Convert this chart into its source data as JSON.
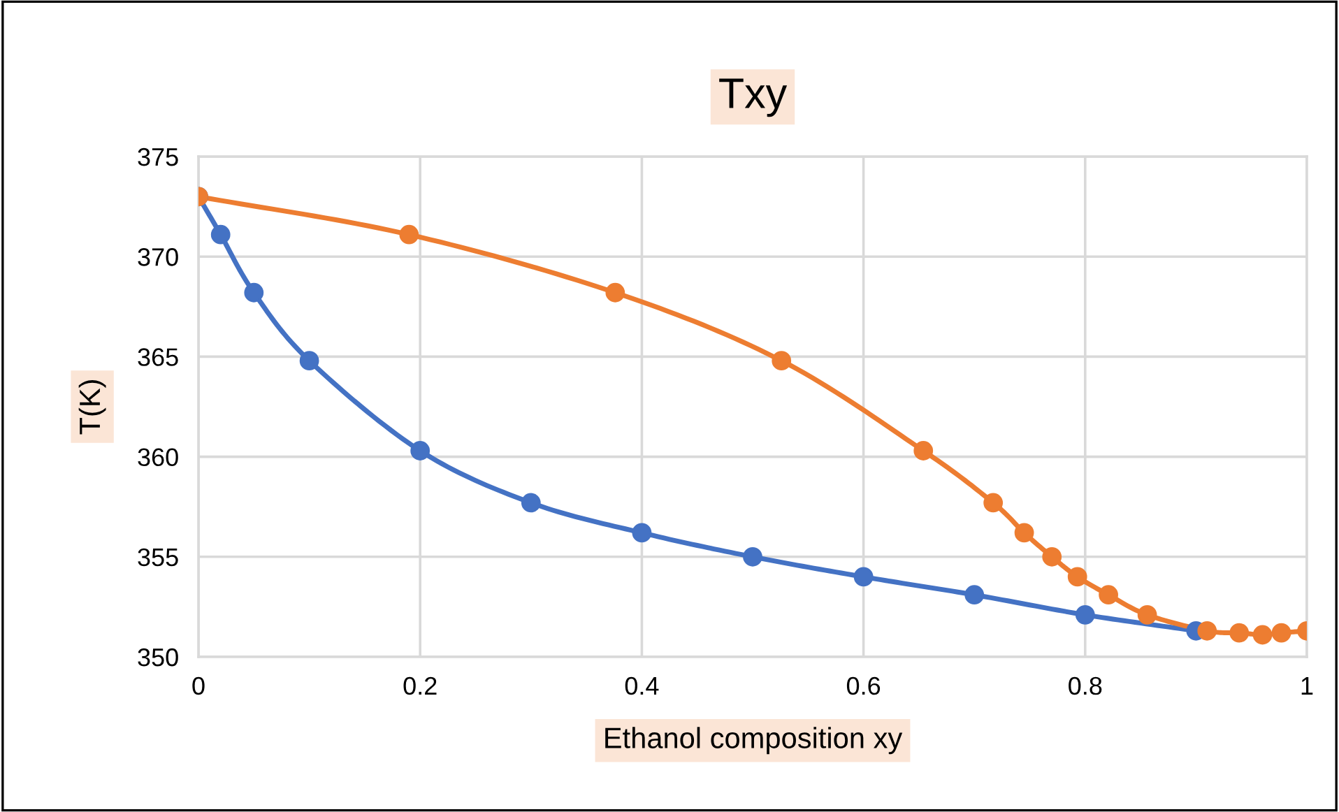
{
  "chart_data": {
    "type": "line",
    "title": "Txy",
    "xlabel": "Ethanol composition xy",
    "ylabel": "T(K)",
    "xlim": [
      0,
      1
    ],
    "xticks": [
      0,
      0.2,
      0.4,
      0.6,
      0.8,
      1
    ],
    "ylim": [
      350,
      375
    ],
    "yticks": [
      350,
      355,
      360,
      365,
      370,
      375
    ],
    "grid": true,
    "marker": "circle",
    "line_style": "solid",
    "series": [
      {
        "color": "#4472c4",
        "x": [
          0,
          0.02,
          0.05,
          0.1,
          0.2,
          0.3,
          0.4,
          0.5,
          0.6,
          0.7,
          0.8,
          0.9
        ],
        "values": [
          373,
          371.1,
          368.2,
          364.8,
          360.3,
          357.7,
          356.2,
          355,
          354,
          353.1,
          352.1,
          351.3
        ]
      },
      {
        "color": "#ed7d31",
        "x": [
          0,
          0.19,
          0.376,
          0.526,
          0.654,
          0.717,
          0.745,
          0.77,
          0.793,
          0.821,
          0.856,
          0.91,
          0.939,
          0.96,
          0.977,
          1.0
        ],
        "values": [
          373,
          371.1,
          368.2,
          364.8,
          360.3,
          357.7,
          356.2,
          355,
          354,
          353.1,
          352.1,
          351.3,
          351.2,
          351.1,
          351.2,
          351.3
        ]
      }
    ]
  }
}
